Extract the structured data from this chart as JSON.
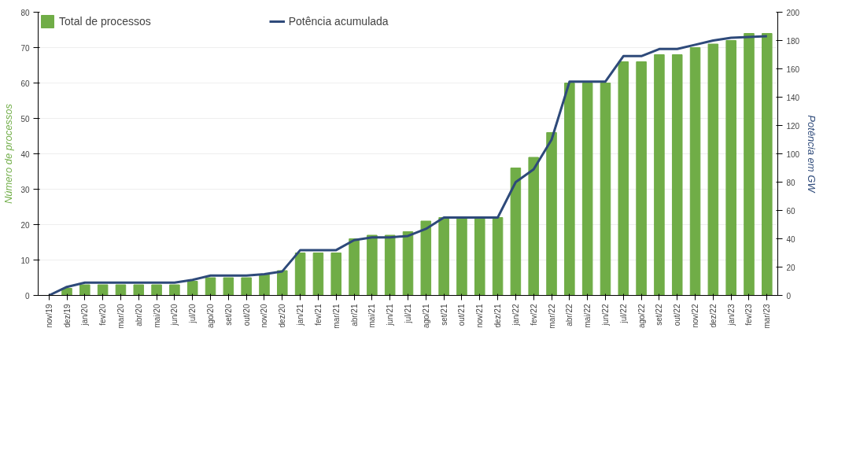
{
  "chart_data": {
    "type": "bar",
    "categories": [
      "nov/19",
      "dez/19",
      "jan/20",
      "fev/20",
      "mar/20",
      "abr/20",
      "mai/20",
      "jun/20",
      "jul/20",
      "ago/20",
      "set/20",
      "out/20",
      "nov/20",
      "dez/20",
      "jan/21",
      "fev/21",
      "mar/21",
      "abr/21",
      "mai/21",
      "jun/21",
      "jul/21",
      "ago/21",
      "set/21",
      "out/21",
      "nov/21",
      "dez/21",
      "jan/22",
      "fev/22",
      "mar/22",
      "abr/22",
      "mai/22",
      "jun/22",
      "jul/22",
      "ago/22",
      "set/22",
      "out/22",
      "nov/22",
      "dez/22",
      "jan/23",
      "fev/23",
      "mar/23"
    ],
    "ylabel": "Número de processos",
    "y2label": "Potência em GW",
    "ylim": [
      0,
      80
    ],
    "yticks": [
      0,
      10,
      20,
      30,
      40,
      50,
      60,
      70,
      80
    ],
    "y2lim": [
      0,
      200
    ],
    "y2ticks": [
      0,
      20,
      40,
      60,
      80,
      100,
      120,
      140,
      160,
      180,
      200
    ],
    "grid": "y",
    "legend": "top left",
    "series": [
      {
        "name": "Total de processos",
        "color": "#70ad47",
        "values": [
          0,
          2,
          3,
          3,
          3,
          3,
          3,
          3,
          4,
          5,
          5,
          5,
          6,
          7,
          12,
          12,
          12,
          16,
          17,
          17,
          18,
          21,
          22,
          22,
          22,
          22,
          36,
          39,
          46,
          60,
          60,
          60,
          66,
          66,
          68,
          68,
          70,
          71,
          72,
          74,
          74
        ]
      },
      {
        "name": "Potência acumulada",
        "type": "line",
        "axis": "y2",
        "color": "#2e4a7a",
        "values": [
          0,
          6,
          9,
          9,
          9,
          9,
          9,
          9,
          11,
          14,
          14,
          14,
          15,
          17,
          32,
          32,
          32,
          39,
          41,
          41,
          42,
          47,
          55,
          55,
          55,
          55,
          80,
          89,
          110,
          151,
          151,
          151,
          169,
          169,
          174,
          174,
          177,
          180,
          182,
          182.5,
          183
        ]
      }
    ]
  }
}
